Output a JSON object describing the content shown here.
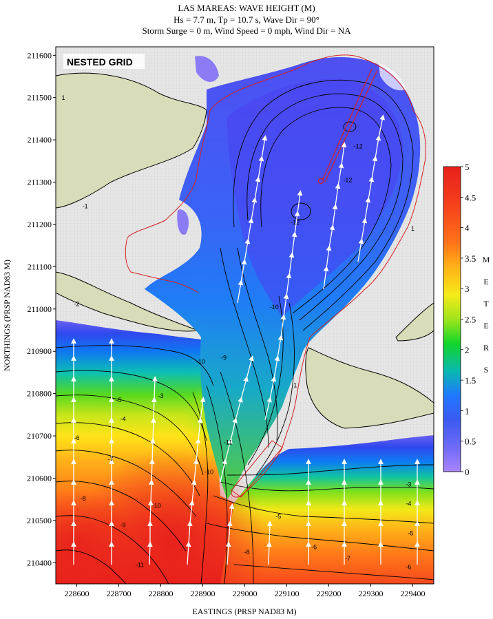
{
  "chart_data": {
    "type": "heatmap",
    "title": "LAS MAREAS: WAVE HEIGHT (M)",
    "subtitle_lines": [
      "Hs = 7.7 m, Tp = 10.7 s, Wave Dir = 90°",
      "Storm Surge = 0 m, Wind Speed = 0 mph, Wind Dir = NA"
    ],
    "badge": "NESTED GRID",
    "xlabel": "EASTINGS (PRSP NAD83 M)",
    "ylabel": "NORTHINGS (PRSP NAD83 M)",
    "xlim": [
      228550,
      229450
    ],
    "ylim": [
      210350,
      211620
    ],
    "x_ticks": [
      "228600",
      "228700",
      "228800",
      "228900",
      "229000",
      "229100",
      "229200",
      "229300",
      "229400"
    ],
    "y_ticks": [
      "210400",
      "210500",
      "210600",
      "210700",
      "210800",
      "210900",
      "211000",
      "211100",
      "211200",
      "211300",
      "211400",
      "211500",
      "211600"
    ],
    "colorbar": {
      "label": [
        "M",
        "E",
        "T",
        "E",
        "R",
        "S"
      ],
      "ticks": [
        "5",
        "4.5",
        "4",
        "3.5",
        "3",
        "2.5",
        "2",
        "1.5",
        "1",
        "0.5",
        "0"
      ],
      "range": [
        0,
        5
      ],
      "colors": [
        "#a884ff",
        "#6f6bf7",
        "#3b5af0",
        "#1f78ff",
        "#09b9b0",
        "#12d52a",
        "#9fe51b",
        "#f5ea18",
        "#ffb218",
        "#ff7319",
        "#f53e1b",
        "#e8201c"
      ]
    },
    "contour_labels": [
      {
        "text": "1",
        "x": 228568,
        "y": 211495
      },
      {
        "text": "-1",
        "x": 228620,
        "y": 211238
      },
      {
        "text": "-2",
        "x": 228600,
        "y": 211007
      },
      {
        "text": "-3",
        "x": 228800,
        "y": 210790
      },
      {
        "text": "-4",
        "x": 228710,
        "y": 210735
      },
      {
        "text": "-5",
        "x": 228700,
        "y": 210780
      },
      {
        "text": "-6",
        "x": 228600,
        "y": 210690
      },
      {
        "text": "-7",
        "x": 228680,
        "y": 210640
      },
      {
        "text": "-8",
        "x": 228615,
        "y": 210547
      },
      {
        "text": "-9",
        "x": 228710,
        "y": 210484
      },
      {
        "text": "-10",
        "x": 228790,
        "y": 210530
      },
      {
        "text": "-11",
        "x": 228750,
        "y": 210390
      },
      {
        "text": "-12",
        "x": 229270,
        "y": 211380
      },
      {
        "text": "-12",
        "x": 229120,
        "y": 211200
      },
      {
        "text": "-12",
        "x": 229245,
        "y": 211300
      },
      {
        "text": "-10",
        "x": 229070,
        "y": 211000
      },
      {
        "text": "-10",
        "x": 228895,
        "y": 210870
      },
      {
        "text": "-9",
        "x": 228950,
        "y": 210880
      },
      {
        "text": "-11",
        "x": 228960,
        "y": 210680
      },
      {
        "text": "-10",
        "x": 228915,
        "y": 210610
      },
      {
        "text": "-8",
        "x": 229005,
        "y": 210420
      },
      {
        "text": "-7",
        "x": 229245,
        "y": 210405
      },
      {
        "text": "-6",
        "x": 229165,
        "y": 210432
      },
      {
        "text": "-5",
        "x": 229080,
        "y": 210505
      },
      {
        "text": "-4",
        "x": 229390,
        "y": 210535
      },
      {
        "text": "-3",
        "x": 229390,
        "y": 210580
      },
      {
        "text": "-5",
        "x": 229395,
        "y": 210465
      },
      {
        "text": "-6",
        "x": 229390,
        "y": 210385
      },
      {
        "text": "1",
        "x": 229120,
        "y": 210815
      },
      {
        "text": "1",
        "x": 229400,
        "y": 211185
      }
    ]
  }
}
